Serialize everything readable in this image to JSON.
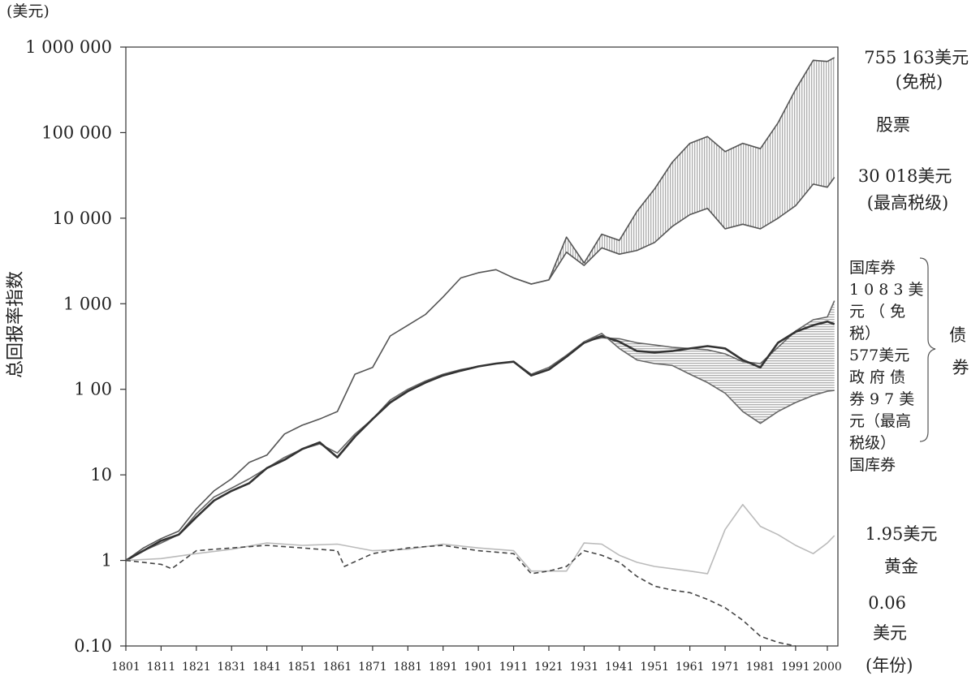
{
  "chart_data": {
    "type": "line",
    "title": "",
    "unit_label": "(美元)",
    "ylabel": "总回报率指数",
    "xlabel": "(年份)",
    "yscale": "log",
    "ylim": [
      0.1,
      1000000
    ],
    "xlim": [
      1801,
      2003
    ],
    "y_ticks": [
      {
        "value": 1000000,
        "label": "1 000 000"
      },
      {
        "value": 100000,
        "label": "100 000"
      },
      {
        "value": 10000,
        "label": "10 000"
      },
      {
        "value": 1000,
        "label": "1 000"
      },
      {
        "value": 100,
        "label": "1 00"
      },
      {
        "value": 10,
        "label": "10"
      },
      {
        "value": 1,
        "label": "1"
      },
      {
        "value": 0.1,
        "label": "0.10"
      }
    ],
    "x_ticks": [
      1801,
      1811,
      1821,
      1831,
      1841,
      1851,
      1861,
      1871,
      1881,
      1891,
      1901,
      1911,
      1921,
      1931,
      1941,
      1951,
      1961,
      1971,
      1981,
      1991,
      2000
    ],
    "series": [
      {
        "name": "股票 (免税)",
        "color": "#555555",
        "x": [
          1801,
          1806,
          1811,
          1816,
          1821,
          1826,
          1831,
          1836,
          1841,
          1846,
          1851,
          1856,
          1861,
          1866,
          1871,
          1876,
          1881,
          1886,
          1891,
          1896,
          1901,
          1906,
          1911,
          1916,
          1921,
          1926,
          1931,
          1936,
          1941,
          1946,
          1951,
          1956,
          1961,
          1966,
          1971,
          1976,
          1981,
          1986,
          1991,
          1996,
          2000,
          2002
        ],
        "y": [
          1,
          1.4,
          1.8,
          2.2,
          4,
          6.5,
          9,
          14,
          17,
          30,
          38,
          45,
          55,
          150,
          180,
          420,
          560,
          750,
          1200,
          2000,
          2300,
          2500,
          2000,
          1700,
          1900,
          6000,
          3000,
          6500,
          5500,
          12000,
          22000,
          45000,
          75000,
          90000,
          60000,
          75000,
          65000,
          130000,
          320000,
          700000,
          680000,
          755163
        ]
      },
      {
        "name": "股票 (最高税级)",
        "color": "#555555",
        "x": [
          1911,
          1916,
          1921,
          1926,
          1931,
          1936,
          1941,
          1946,
          1951,
          1956,
          1961,
          1966,
          1971,
          1976,
          1981,
          1986,
          1991,
          1996,
          2000,
          2002
        ],
        "y": [
          2000,
          1700,
          1900,
          4000,
          2800,
          4500,
          3800,
          4200,
          5200,
          8000,
          11000,
          13000,
          7500,
          8500,
          7500,
          10000,
          14000,
          25000,
          23000,
          30018
        ]
      },
      {
        "name": "政府债券 (免税)",
        "color": "#666666",
        "x": [
          1801,
          1806,
          1811,
          1816,
          1821,
          1826,
          1831,
          1836,
          1841,
          1846,
          1851,
          1856,
          1861,
          1866,
          1871,
          1876,
          1881,
          1886,
          1891,
          1896,
          1901,
          1906,
          1911,
          1916,
          1921,
          1926,
          1931,
          1936,
          1941,
          1946,
          1951,
          1956,
          1961,
          1966,
          1971,
          1976,
          1981,
          1986,
          1991,
          1996,
          2000,
          2002
        ],
        "y": [
          1,
          1.3,
          1.6,
          2,
          3.5,
          5.5,
          7,
          9,
          12,
          16,
          20,
          23,
          18,
          30,
          45,
          75,
          100,
          125,
          150,
          170,
          185,
          200,
          210,
          150,
          180,
          250,
          360,
          400,
          390,
          350,
          330,
          310,
          300,
          290,
          260,
          210,
          200,
          310,
          480,
          650,
          700,
          1083
        ]
      },
      {
        "name": "国库券 (免税)",
        "color": "#333333",
        "x": [
          1801,
          1806,
          1811,
          1816,
          1821,
          1826,
          1831,
          1836,
          1841,
          1846,
          1851,
          1856,
          1861,
          1866,
          1871,
          1876,
          1881,
          1886,
          1891,
          1896,
          1901,
          1906,
          1911,
          1916,
          1921,
          1926,
          1931,
          1936,
          1941,
          1946,
          1951,
          1956,
          1961,
          1966,
          1971,
          1976,
          1981,
          1986,
          1991,
          1996,
          2000,
          2002
        ],
        "y": [
          1,
          1.3,
          1.7,
          2,
          3.2,
          5,
          6.5,
          8,
          12,
          15,
          20,
          24,
          16,
          28,
          45,
          70,
          95,
          120,
          145,
          165,
          185,
          200,
          210,
          145,
          170,
          240,
          350,
          420,
          360,
          280,
          270,
          280,
          300,
          320,
          300,
          220,
          180,
          350,
          470,
          560,
          620,
          577
        ]
      },
      {
        "name": "政府债券 (最高税级)",
        "color": "#666666",
        "x": [
          1931,
          1936,
          1941,
          1946,
          1951,
          1956,
          1961,
          1966,
          1971,
          1976,
          1981,
          1986,
          1991,
          1996,
          2000,
          2002
        ],
        "y": [
          360,
          450,
          300,
          220,
          200,
          190,
          150,
          120,
          90,
          55,
          40,
          55,
          70,
          85,
          95,
          97
        ]
      },
      {
        "name": "黄金",
        "color": "#bbbbbb",
        "x": [
          1801,
          1811,
          1821,
          1831,
          1841,
          1851,
          1861,
          1871,
          1881,
          1891,
          1901,
          1911,
          1916,
          1921,
          1926,
          1931,
          1936,
          1941,
          1946,
          1951,
          1956,
          1961,
          1966,
          1971,
          1976,
          1981,
          1986,
          1991,
          1996,
          2000,
          2002
        ],
        "y": [
          1,
          1.05,
          1.2,
          1.35,
          1.6,
          1.5,
          1.55,
          1.3,
          1.35,
          1.55,
          1.4,
          1.3,
          0.75,
          0.75,
          0.75,
          1.6,
          1.55,
          1.15,
          0.95,
          0.85,
          0.8,
          0.75,
          0.7,
          2.3,
          4.5,
          2.5,
          2.0,
          1.5,
          1.2,
          1.6,
          1.95
        ]
      },
      {
        "name": "0.06美元",
        "color": "#444444",
        "dashed": true,
        "x": [
          1801,
          1811,
          1814,
          1821,
          1831,
          1841,
          1851,
          1861,
          1863,
          1871,
          1881,
          1891,
          1901,
          1911,
          1916,
          1921,
          1926,
          1931,
          1936,
          1941,
          1946,
          1951,
          1956,
          1961,
          1966,
          1971,
          1976,
          1981,
          1986,
          1991
        ],
        "y": [
          1,
          0.9,
          0.8,
          1.3,
          1.4,
          1.5,
          1.4,
          1.3,
          0.85,
          1.2,
          1.4,
          1.5,
          1.3,
          1.2,
          0.7,
          0.75,
          0.85,
          1.3,
          1.15,
          0.95,
          0.65,
          0.5,
          0.45,
          0.42,
          0.35,
          0.28,
          0.2,
          0.13,
          0.11,
          0.1
        ]
      }
    ],
    "bands": [
      {
        "name": "股票",
        "upper": "股票 (免税)",
        "lower": "股票 (最高税级)",
        "pattern": "vertical"
      },
      {
        "name": "债券",
        "upper": "政府债券 (免税)",
        "lower": "政府债券 (最高税级)",
        "pattern": "horizontal"
      }
    ],
    "annotations": [
      {
        "id": "stock-val",
        "lines": [
          "755 163美元",
          "(免税)"
        ]
      },
      {
        "id": "stock-label",
        "lines": [
          "股票"
        ]
      },
      {
        "id": "stock-taxed",
        "lines": [
          "30 018美元",
          "(最高税级)"
        ]
      },
      {
        "id": "bond-text",
        "lines": [
          "国库券",
          "1 0 8 3 美",
          "元 （ 免",
          "税）",
          "577美元",
          "政 府 债",
          "券 9 7 美",
          "元（最高",
          "税级）",
          "国库券"
        ]
      },
      {
        "id": "bond-label",
        "lines": [
          "债",
          "券"
        ]
      },
      {
        "id": "gold-val",
        "lines": [
          "1.95美元"
        ]
      },
      {
        "id": "gold-label",
        "lines": [
          "黄金"
        ]
      },
      {
        "id": "dollar-val",
        "lines": [
          "0.06",
          "美元"
        ]
      }
    ]
  }
}
